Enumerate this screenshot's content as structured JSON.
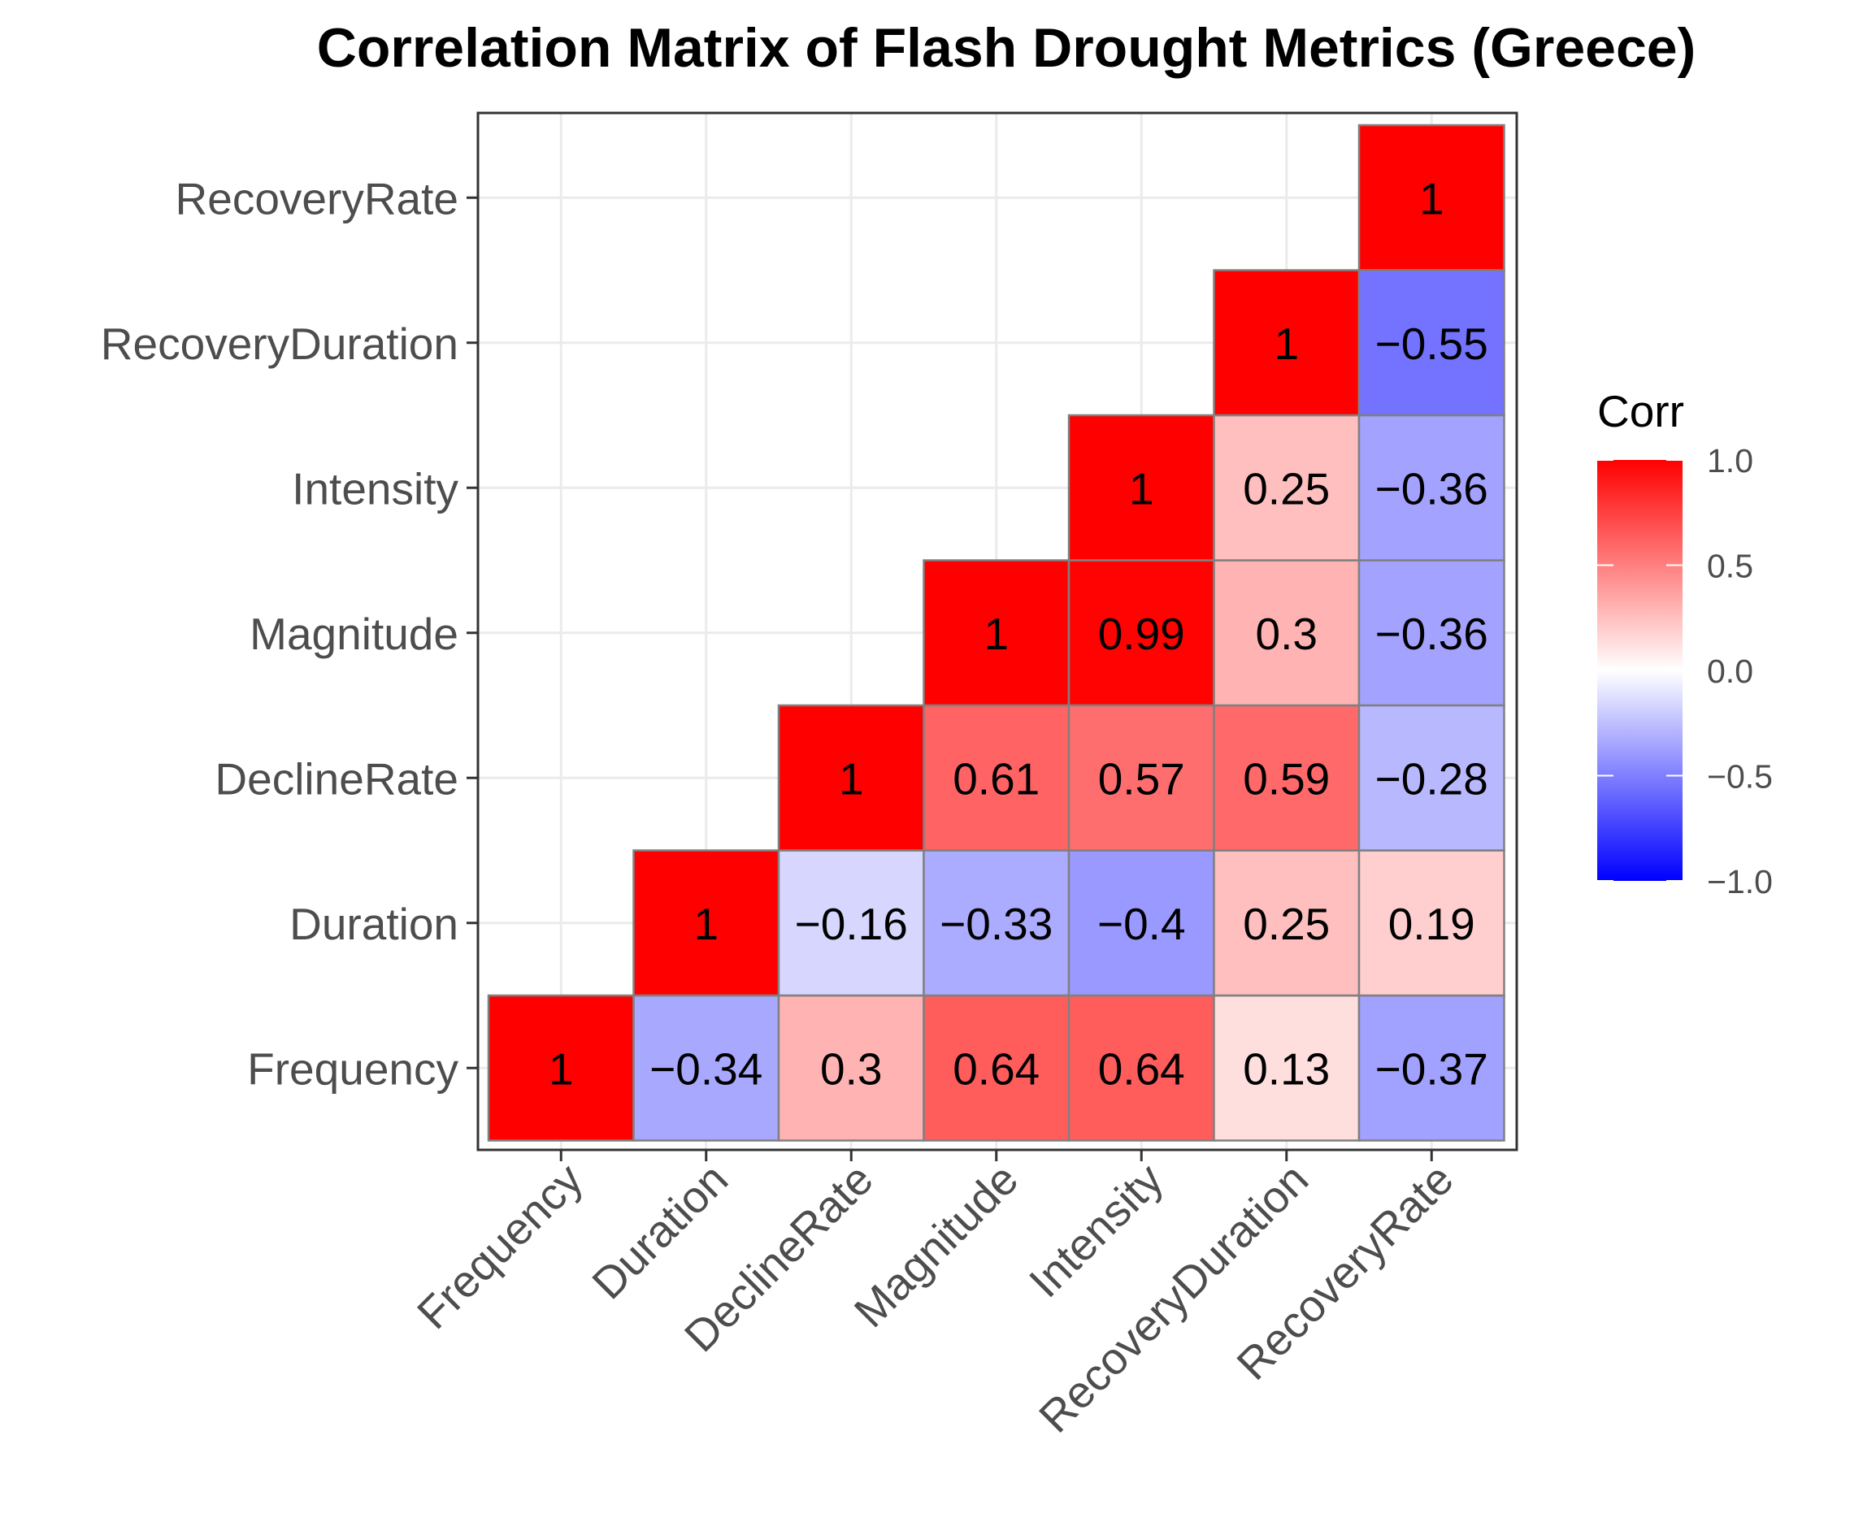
{
  "chart_data": {
    "type": "heatmap",
    "title": "Correlation Matrix of Flash Drought Metrics (Greece)",
    "variables": [
      "Frequency",
      "Duration",
      "DeclineRate",
      "Magnitude",
      "Intensity",
      "RecoveryDuration",
      "RecoveryRate"
    ],
    "cells": [
      {
        "x": "Frequency",
        "y": "Frequency",
        "value": 1,
        "label": "1"
      },
      {
        "x": "Duration",
        "y": "Frequency",
        "value": -0.34,
        "label": "−0.34"
      },
      {
        "x": "DeclineRate",
        "y": "Frequency",
        "value": 0.3,
        "label": "0.3"
      },
      {
        "x": "Magnitude",
        "y": "Frequency",
        "value": 0.64,
        "label": "0.64"
      },
      {
        "x": "Intensity",
        "y": "Frequency",
        "value": 0.64,
        "label": "0.64"
      },
      {
        "x": "RecoveryDuration",
        "y": "Frequency",
        "value": 0.13,
        "label": "0.13"
      },
      {
        "x": "RecoveryRate",
        "y": "Frequency",
        "value": -0.37,
        "label": "−0.37"
      },
      {
        "x": "Duration",
        "y": "Duration",
        "value": 1,
        "label": "1"
      },
      {
        "x": "DeclineRate",
        "y": "Duration",
        "value": -0.16,
        "label": "−0.16"
      },
      {
        "x": "Magnitude",
        "y": "Duration",
        "value": -0.33,
        "label": "−0.33"
      },
      {
        "x": "Intensity",
        "y": "Duration",
        "value": -0.4,
        "label": "−0.4"
      },
      {
        "x": "RecoveryDuration",
        "y": "Duration",
        "value": 0.25,
        "label": "0.25"
      },
      {
        "x": "RecoveryRate",
        "y": "Duration",
        "value": 0.19,
        "label": "0.19"
      },
      {
        "x": "DeclineRate",
        "y": "DeclineRate",
        "value": 1,
        "label": "1"
      },
      {
        "x": "Magnitude",
        "y": "DeclineRate",
        "value": 0.61,
        "label": "0.61"
      },
      {
        "x": "Intensity",
        "y": "DeclineRate",
        "value": 0.57,
        "label": "0.57"
      },
      {
        "x": "RecoveryDuration",
        "y": "DeclineRate",
        "value": 0.59,
        "label": "0.59"
      },
      {
        "x": "RecoveryRate",
        "y": "DeclineRate",
        "value": -0.28,
        "label": "−0.28"
      },
      {
        "x": "Magnitude",
        "y": "Magnitude",
        "value": 1,
        "label": "1"
      },
      {
        "x": "Intensity",
        "y": "Magnitude",
        "value": 0.99,
        "label": "0.99"
      },
      {
        "x": "RecoveryDuration",
        "y": "Magnitude",
        "value": 0.3,
        "label": "0.3"
      },
      {
        "x": "RecoveryRate",
        "y": "Magnitude",
        "value": -0.36,
        "label": "−0.36"
      },
      {
        "x": "Intensity",
        "y": "Intensity",
        "value": 1,
        "label": "1"
      },
      {
        "x": "RecoveryDuration",
        "y": "Intensity",
        "value": 0.25,
        "label": "0.25"
      },
      {
        "x": "RecoveryRate",
        "y": "Intensity",
        "value": -0.36,
        "label": "−0.36"
      },
      {
        "x": "RecoveryDuration",
        "y": "RecoveryDuration",
        "value": 1,
        "label": "1"
      },
      {
        "x": "RecoveryRate",
        "y": "RecoveryDuration",
        "value": -0.55,
        "label": "−0.55"
      },
      {
        "x": "RecoveryRate",
        "y": "RecoveryRate",
        "value": 1,
        "label": "1"
      }
    ],
    "legend": {
      "title": "Corr",
      "ticks": [
        1.0,
        0.5,
        0.0,
        -0.5,
        -1.0
      ],
      "tick_labels": [
        "1.0",
        "0.5",
        "0.0",
        "−0.5",
        "−1.0"
      ],
      "range": [
        -1,
        1
      ],
      "position": "right"
    },
    "colors": {
      "low": "#0000ff",
      "mid": "#ffffff",
      "high": "#ff0000",
      "tile_border": "#808080",
      "grid": "#ebebeb",
      "panel_border": "#333333",
      "axis_text": "#4d4d4d"
    },
    "grid": true,
    "xlabel": "",
    "ylabel": ""
  }
}
